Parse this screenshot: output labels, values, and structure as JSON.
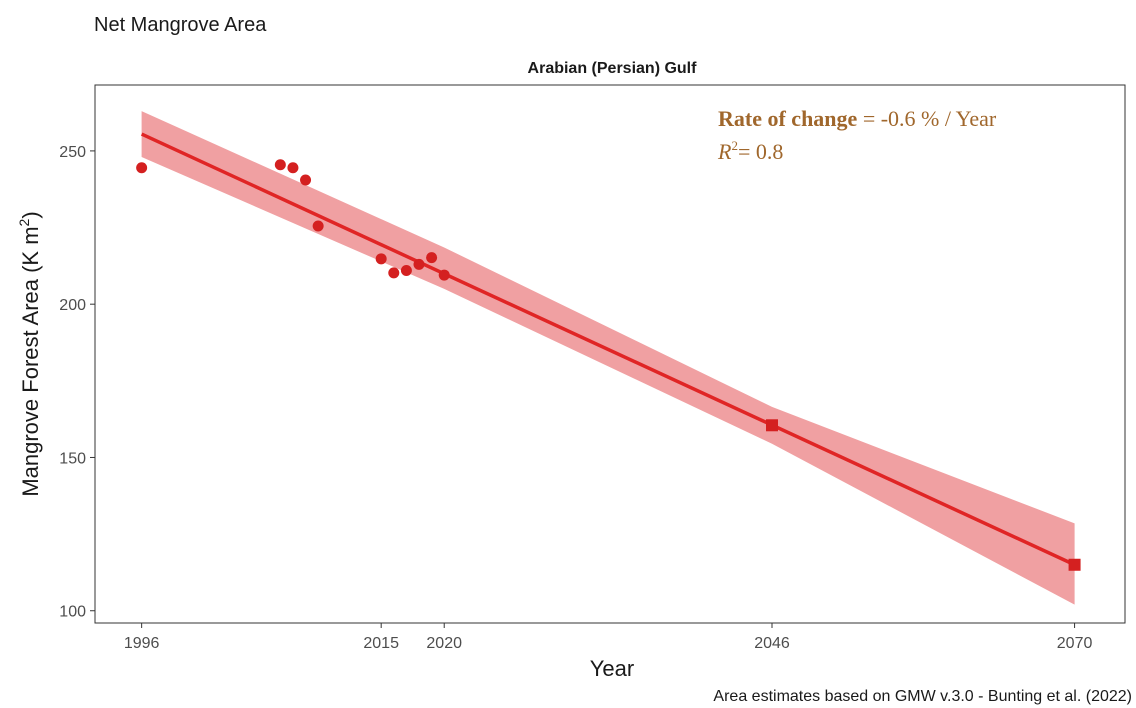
{
  "page": {
    "title": "Net Mangrove Area",
    "caption": "Area estimates based on GMW v.3.0 - Bunting et al. (2022)"
  },
  "chart_data": {
    "type": "scatter",
    "panel_title": "Arabian (Persian) Gulf",
    "xlabel": "Year",
    "ylabel": "Mangrove Forest Area (K m",
    "ylabel_superscript": "2",
    "ylabel_close": ")",
    "xlim": [
      1992.3,
      2074.0
    ],
    "ylim": [
      96.0,
      271.5
    ],
    "x_ticks": [
      1996,
      2015,
      2020,
      2046,
      2070
    ],
    "y_ticks": [
      100,
      150,
      200,
      250
    ],
    "grid": false,
    "colors": {
      "points": "#d42020",
      "line": "#e02525",
      "band": "#f0a0a2",
      "annotation": "#a0672c"
    },
    "observed": [
      {
        "x": 1996,
        "y": 244.5
      },
      {
        "x": 2007,
        "y": 245.5
      },
      {
        "x": 2008,
        "y": 244.5
      },
      {
        "x": 2009,
        "y": 240.5
      },
      {
        "x": 2010,
        "y": 225.5
      },
      {
        "x": 2015,
        "y": 214.8
      },
      {
        "x": 2016,
        "y": 210.2
      },
      {
        "x": 2017,
        "y": 211.0
      },
      {
        "x": 2018,
        "y": 213.0
      },
      {
        "x": 2019,
        "y": 215.2
      },
      {
        "x": 2020,
        "y": 209.5
      }
    ],
    "projected": [
      {
        "x": 2046,
        "y": 160.5
      },
      {
        "x": 2070,
        "y": 115.0
      }
    ],
    "fit_line": {
      "x": [
        1996,
        2070
      ],
      "y": [
        255.5,
        115.0
      ]
    },
    "confidence_band": {
      "x": [
        1996,
        2020,
        2046,
        2070
      ],
      "upper": [
        263.0,
        218.5,
        166.5,
        128.5
      ],
      "lower": [
        248.0,
        205.0,
        154.5,
        102.0
      ]
    },
    "annotation": {
      "rate_label": "Rate of change",
      "rate_value": " = -0.6 % / Year",
      "r2_symbol": "R",
      "r2_superscript": "2",
      "r2_value": "= 0.8"
    }
  }
}
